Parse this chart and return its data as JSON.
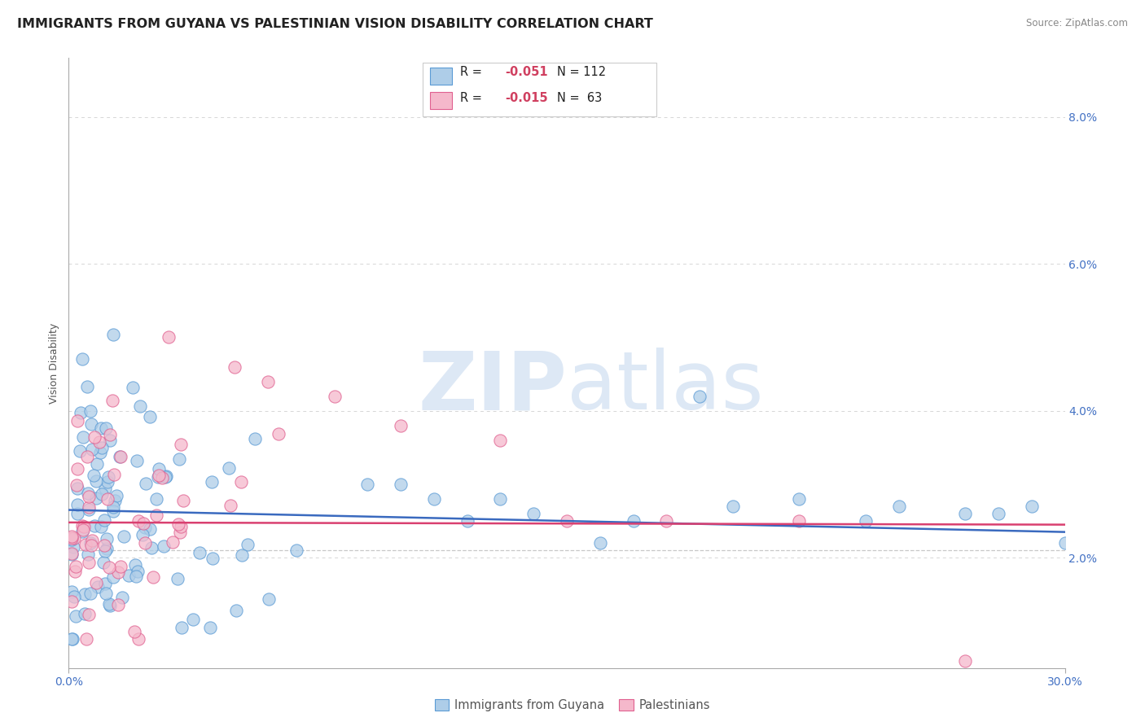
{
  "title": "IMMIGRANTS FROM GUYANA VS PALESTINIAN VISION DISABILITY CORRELATION CHART",
  "source_text": "Source: ZipAtlas.com",
  "ylabel": "Vision Disability",
  "y_tick_values": [
    0.02,
    0.04,
    0.06,
    0.08
  ],
  "x_lim": [
    0.0,
    0.3
  ],
  "y_lim": [
    0.005,
    0.088
  ],
  "legend_entry1": "R = -0.051   N = 112",
  "legend_entry2": "R = -0.015   N =  63",
  "color_blue": "#aecde8",
  "color_pink": "#f5b8cb",
  "color_blue_edge": "#5b9bd5",
  "color_pink_edge": "#e06090",
  "trend_color_blue": "#3a6abf",
  "trend_color_pink": "#d94070",
  "watermark_color": "#dde8f5",
  "background_color": "#ffffff",
  "grid_color": "#bbbbbb",
  "title_fontsize": 11.5,
  "axis_label_fontsize": 9,
  "tick_fontsize": 10,
  "legend_fontsize": 10.5,
  "r_value_color": "#d04060",
  "n_value_color": "#1a1a1a",
  "source_color": "#888888"
}
